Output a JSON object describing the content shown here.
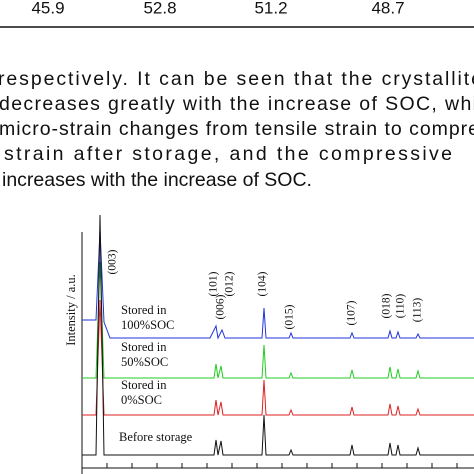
{
  "table": {
    "rows": [
      [
        "45.9",
        "52.8",
        "51.2",
        "48.7"
      ]
    ]
  },
  "paragraph": {
    "lines": [
      "respectively. It can be seen that the crystallite",
      "decreases greatly with the increase of SOC, whi",
      "micro-strain changes from tensile strain to compre",
      "strain after storage, and the compressive",
      "increases with the increase of SOC."
    ]
  },
  "figure": {
    "y_axis_label": "Intensity / a.u.",
    "peak_labels": [
      "(003)",
      "(101)",
      "(006)",
      "(012)",
      "(104)",
      "(015)",
      "(107)",
      "(018)",
      "(110)",
      "(113)"
    ],
    "trace_labels": [
      [
        "Stored in",
        "100%SOC"
      ],
      [
        "Stored in",
        "50%SOC"
      ],
      [
        "Stored in",
        "0%SOC"
      ],
      [
        "Before storage"
      ]
    ]
  }
}
